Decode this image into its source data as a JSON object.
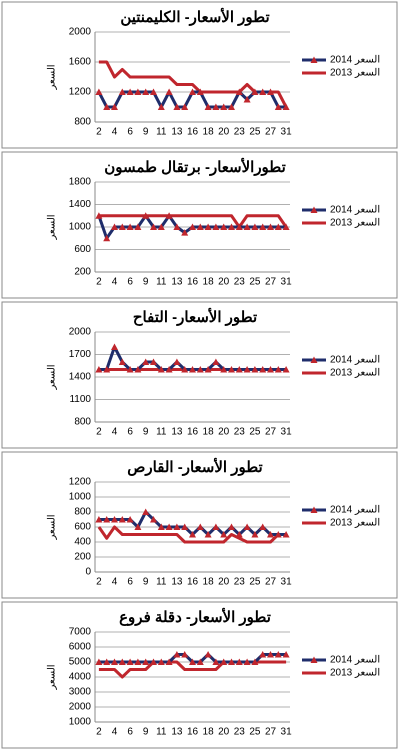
{
  "chart_data": [
    {
      "type": "line",
      "title": "تطور الأسعار- الكليمنتين",
      "y_label": "السعر",
      "categories": [
        "2",
        null,
        "4",
        null,
        "6",
        null,
        "9",
        null,
        "11",
        null,
        "13",
        null,
        "16",
        null,
        "18",
        null,
        "20",
        null,
        "23",
        null,
        "25",
        null,
        "27",
        null,
        "31"
      ],
      "series": [
        {
          "name": "2014 السعر",
          "color": "#1f2d6b",
          "marker_color": "#c0262d",
          "values": [
            1200,
            1000,
            1000,
            1200,
            1200,
            1200,
            1200,
            1200,
            1000,
            1200,
            1000,
            1000,
            1200,
            1200,
            1000,
            1000,
            1000,
            1000,
            1200,
            1100,
            1200,
            1200,
            1200,
            1000,
            1000
          ]
        },
        {
          "name": "2013 السعر",
          "color": "#c0262d",
          "values": [
            1600,
            1600,
            1400,
            1500,
            1400,
            1400,
            1400,
            1400,
            1400,
            1400,
            1300,
            1300,
            1300,
            1200,
            1200,
            1200,
            1200,
            1200,
            1200,
            1300,
            1200,
            1200,
            1200,
            1200,
            1000
          ]
        }
      ],
      "ylim": [
        800,
        2000
      ],
      "yticks": [
        800,
        1200,
        1600,
        2000
      ],
      "grid": true
    },
    {
      "type": "line",
      "title": "تطورالأسعار- برتقال طمسون",
      "y_label": "السعر",
      "categories": [
        "2",
        null,
        "4",
        null,
        "6",
        null,
        "9",
        null,
        "11",
        null,
        "13",
        null,
        "16",
        null,
        "18",
        null,
        "20",
        null,
        "23",
        null,
        "25",
        null,
        "27",
        null,
        "31"
      ],
      "series": [
        {
          "name": "2014 السعر",
          "color": "#1f2d6b",
          "marker_color": "#c0262d",
          "values": [
            1200,
            800,
            1000,
            1000,
            1000,
            1000,
            1200,
            1000,
            1000,
            1200,
            1000,
            900,
            1000,
            1000,
            1000,
            1000,
            1000,
            1000,
            1000,
            1000,
            1000,
            1000,
            1000,
            1000,
            1000
          ]
        },
        {
          "name": "2013 السعر",
          "color": "#c0262d",
          "values": [
            1200,
            1200,
            1200,
            1200,
            1200,
            1200,
            1200,
            1200,
            1200,
            1200,
            1200,
            1200,
            1200,
            1200,
            1200,
            1200,
            1200,
            1200,
            1000,
            1200,
            1200,
            1200,
            1200,
            1200,
            1000
          ]
        }
      ],
      "ylim": [
        200,
        1800
      ],
      "yticks": [
        200,
        600,
        1000,
        1400,
        1800
      ],
      "grid": true
    },
    {
      "type": "line",
      "title": "تطور الأسعار- التفاح",
      "y_label": "السعر",
      "categories": [
        "2",
        null,
        "4",
        null,
        "6",
        null,
        "9",
        null,
        "11",
        null,
        "13",
        null,
        "16",
        null,
        "18",
        null,
        "20",
        null,
        "23",
        null,
        "25",
        null,
        "27",
        null,
        "31"
      ],
      "series": [
        {
          "name": "2014 السعر",
          "color": "#1f2d6b",
          "marker_color": "#c0262d",
          "values": [
            1500,
            1500,
            1800,
            1600,
            1500,
            1500,
            1600,
            1600,
            1500,
            1500,
            1600,
            1500,
            1500,
            1500,
            1500,
            1600,
            1500,
            1500,
            1500,
            1500,
            1500,
            1500,
            1500,
            1500,
            1500
          ]
        },
        {
          "name": "2013 السعر",
          "color": "#c0262d",
          "values": [
            1500,
            1500,
            1500,
            1500,
            1500,
            1500,
            1500,
            1500,
            1500,
            1500,
            1500,
            1500,
            1500,
            1500,
            1500,
            1500,
            1500,
            1500,
            1500,
            1500,
            1500,
            1500,
            1500,
            1500,
            1500
          ]
        }
      ],
      "ylim": [
        800,
        2000
      ],
      "yticks": [
        800,
        1100,
        1400,
        1700,
        2000
      ],
      "grid": true
    },
    {
      "type": "line",
      "title": "تطور الأسعار- القارص",
      "y_label": "السعر",
      "categories": [
        "2",
        null,
        "4",
        null,
        "6",
        null,
        "9",
        null,
        "11",
        null,
        "13",
        null,
        "16",
        null,
        "18",
        null,
        "20",
        null,
        "23",
        null,
        "25",
        null,
        "27",
        null,
        "31"
      ],
      "series": [
        {
          "name": "2014 السعر",
          "color": "#1f2d6b",
          "marker_color": "#c0262d",
          "values": [
            700,
            700,
            700,
            700,
            700,
            600,
            800,
            700,
            600,
            600,
            600,
            600,
            500,
            600,
            500,
            600,
            500,
            600,
            500,
            600,
            500,
            600,
            500,
            500,
            500
          ]
        },
        {
          "name": "2013 السعر",
          "color": "#c0262d",
          "values": [
            600,
            450,
            600,
            500,
            500,
            500,
            500,
            500,
            500,
            500,
            500,
            400,
            400,
            400,
            400,
            400,
            400,
            500,
            450,
            400,
            400,
            400,
            400,
            500,
            500
          ]
        }
      ],
      "ylim": [
        0,
        1200
      ],
      "yticks": [
        0,
        200,
        400,
        600,
        800,
        1000,
        1200
      ],
      "grid": true
    },
    {
      "type": "line",
      "title": "تطور الأسعار- دقلة فروع",
      "y_label": "السعر",
      "categories": [
        "2",
        null,
        "4",
        null,
        "6",
        null,
        "9",
        null,
        "11",
        null,
        "13",
        null,
        "16",
        null,
        "18",
        null,
        "20",
        null,
        "23",
        null,
        "25",
        null,
        "27",
        null,
        "31"
      ],
      "series": [
        {
          "name": "2014 السعر",
          "color": "#1f2d6b",
          "marker_color": "#c0262d",
          "values": [
            5000,
            5000,
            5000,
            5000,
            5000,
            5000,
            5000,
            5000,
            5000,
            5000,
            5500,
            5500,
            5000,
            5000,
            5500,
            5000,
            5000,
            5000,
            5000,
            5000,
            5000,
            5500,
            5500,
            5500,
            5500
          ]
        },
        {
          "name": "2013 السعر",
          "color": "#c0262d",
          "values": [
            4500,
            4500,
            4500,
            4000,
            4500,
            4500,
            4500,
            5000,
            5000,
            5000,
            5000,
            4500,
            4500,
            4500,
            4500,
            4500,
            5000,
            5000,
            5000,
            5000,
            5000,
            5000,
            5000,
            5000,
            5000
          ]
        }
      ],
      "ylim": [
        1000,
        7000
      ],
      "yticks": [
        1000,
        2000,
        3000,
        4000,
        5000,
        6000,
        7000
      ],
      "grid": true
    }
  ]
}
